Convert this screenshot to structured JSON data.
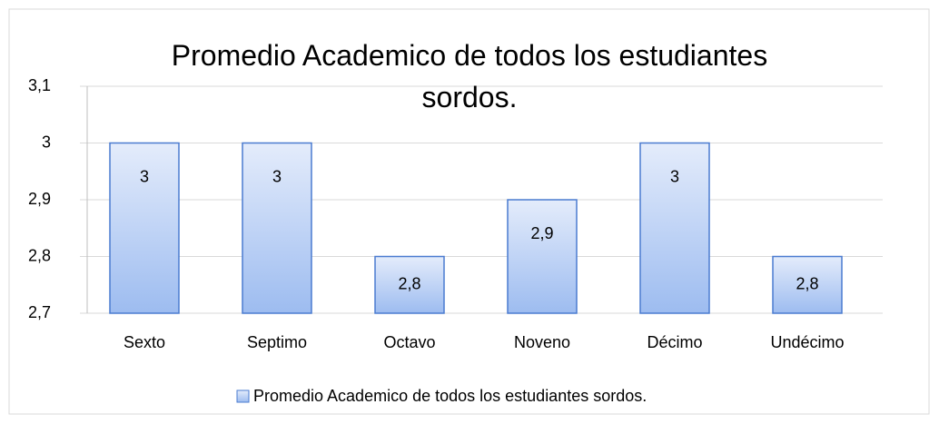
{
  "chart_data": {
    "type": "bar",
    "title": "Promedio Academico de todos los estudiantes sordos.",
    "categories": [
      "Sexto",
      "Septimo",
      "Octavo",
      "Noveno",
      "Décimo",
      "Undécimo"
    ],
    "series": [
      {
        "name": "Promedio Academico de todos los estudiantes sordos.",
        "color": "#4a7bd0",
        "values": [
          3,
          3,
          2.8,
          2.9,
          3,
          2.8
        ],
        "value_labels": [
          "3",
          "3",
          "2,8",
          "2,9",
          "3",
          "2,8"
        ]
      }
    ],
    "ylim": [
      2.7,
      3.1
    ],
    "yticks": [
      {
        "value": 2.7,
        "label": "2,7"
      },
      {
        "value": 2.8,
        "label": "2,8"
      },
      {
        "value": 2.9,
        "label": "2,9"
      },
      3,
      {
        "value": 3.1,
        "label": "3,1"
      }
    ],
    "grid": true,
    "legend": "bottom"
  }
}
